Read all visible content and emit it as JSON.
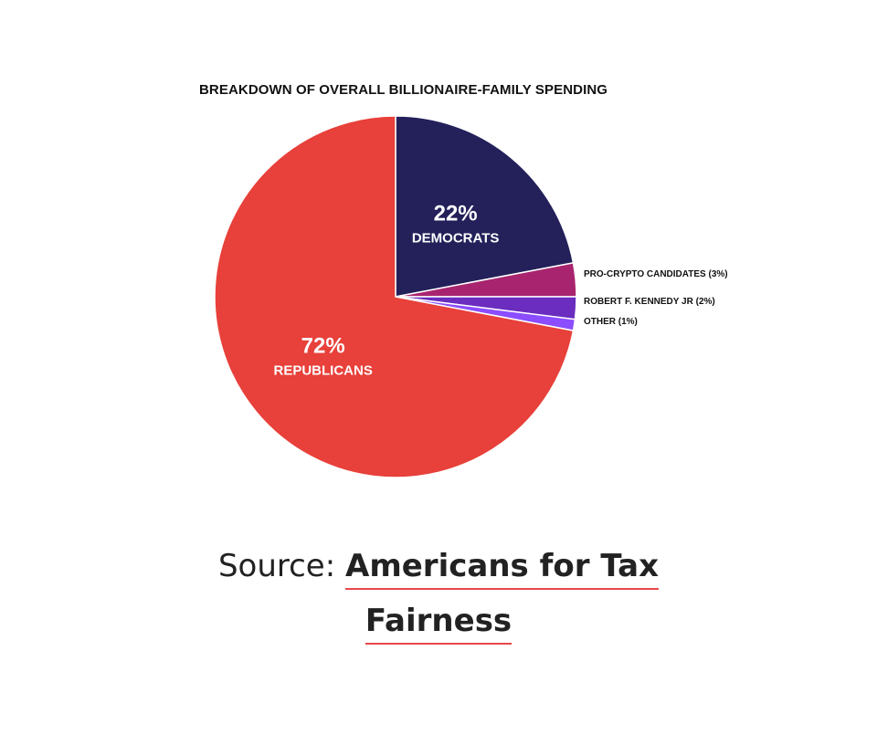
{
  "chart_data": {
    "type": "pie",
    "title": "BREAKDOWN OF OVERALL BILLIONAIRE-FAMILY SPENDING",
    "slices": [
      {
        "name": "DEMOCRATS",
        "value": 22,
        "pct_label": "22%",
        "color": "#23205a",
        "label_position": "inside"
      },
      {
        "name": "PRO-CRYPTO CANDIDATES (3%)",
        "value": 3,
        "color": "#a8246e",
        "label_position": "outside"
      },
      {
        "name": "ROBERT F. KENNEDY JR (2%)",
        "value": 2,
        "color": "#6a2dbf",
        "label_position": "outside"
      },
      {
        "name": "OTHER (1%)",
        "value": 1,
        "color": "#8b4dff",
        "label_position": "outside"
      },
      {
        "name": "REPUBLICANS",
        "value": 72,
        "pct_label": "72%",
        "color": "#e8403a",
        "label_position": "inside"
      }
    ]
  },
  "source": {
    "prefix": "Source: ",
    "link_line1": "Americans for Tax",
    "link_line2": "Fairness",
    "underline_color": "#e8474a"
  }
}
